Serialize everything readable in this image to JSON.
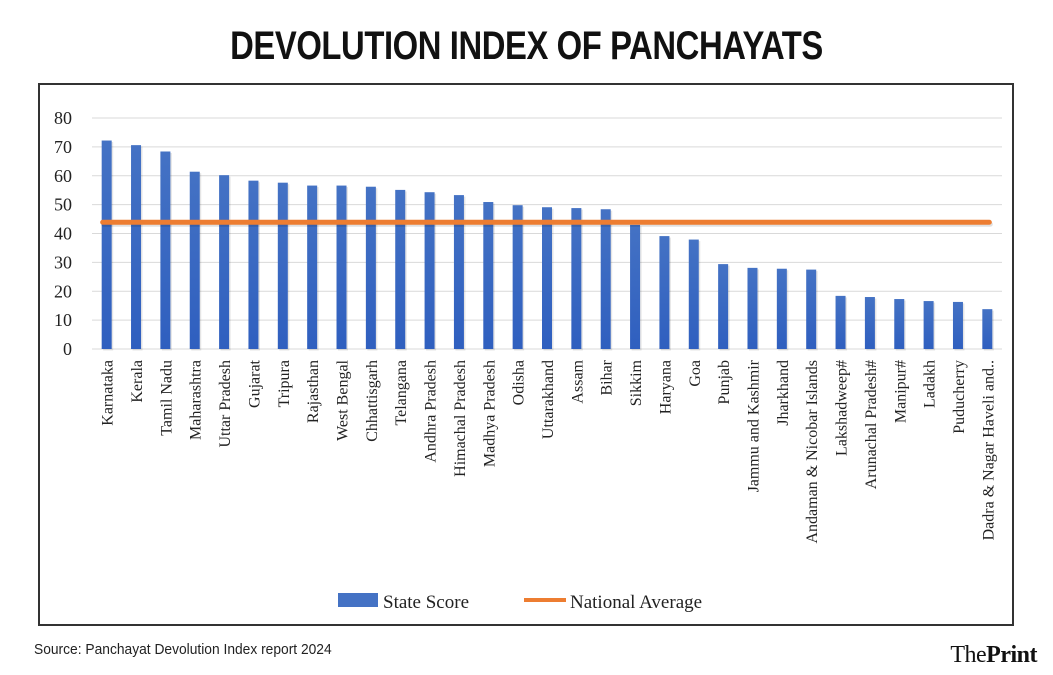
{
  "title": "DEVOLUTION INDEX OF PANCHAYATS",
  "source": "Source: Panchayat Devolution Index report 2024",
  "brand": {
    "part1": "The",
    "part2": "Print"
  },
  "colors": {
    "bar": "#4472C4",
    "bar_dark": "#2F5FBF",
    "line": "#ED7D31",
    "grid": "#D9D9D9"
  },
  "chart_data": {
    "type": "bar",
    "title": "DEVOLUTION INDEX OF PANCHAYATS",
    "xlabel": "",
    "ylabel": "",
    "ylim": [
      0,
      80
    ],
    "yticks": [
      0,
      10,
      20,
      30,
      40,
      50,
      60,
      70,
      80
    ],
    "grid": true,
    "legend_position": "bottom",
    "categories": [
      "Karnataka",
      "Kerala",
      "Tamil Nadu",
      "Maharashtra",
      "Uttar Pradesh",
      "Gujarat",
      "Tripura",
      "Rajasthan",
      "West Bengal",
      "Chhattisgarh",
      "Telangana",
      "Andhra Pradesh",
      "Himachal Pradesh",
      "Madhya Pradesh",
      "Odisha",
      "Uttarakhand",
      "Assam",
      "Bihar",
      "Sikkim",
      "Haryana",
      "Goa",
      "Punjab",
      "Jammu and Kashmir",
      "Jharkhand",
      "Andaman & Nicobar Islands",
      "Lakshadweep#",
      "Arunachal Pradesh#",
      "Manipur#",
      "Ladakh",
      "Puducherry",
      "Dadra & Nagar Haveli and.."
    ],
    "series": [
      {
        "name": "State Score",
        "type": "bar",
        "values": [
          72.2,
          70.6,
          68.4,
          61.4,
          60.2,
          58.3,
          57.6,
          56.6,
          56.6,
          56.2,
          55.1,
          54.3,
          53.3,
          50.9,
          49.8,
          49.1,
          48.8,
          48.4,
          43.0,
          39.1,
          37.9,
          29.4,
          28.1,
          27.8,
          27.5,
          18.4,
          18.0,
          17.3,
          16.6,
          16.3,
          13.8
        ]
      },
      {
        "name": "National Average",
        "type": "line",
        "value": 43.9
      }
    ]
  }
}
